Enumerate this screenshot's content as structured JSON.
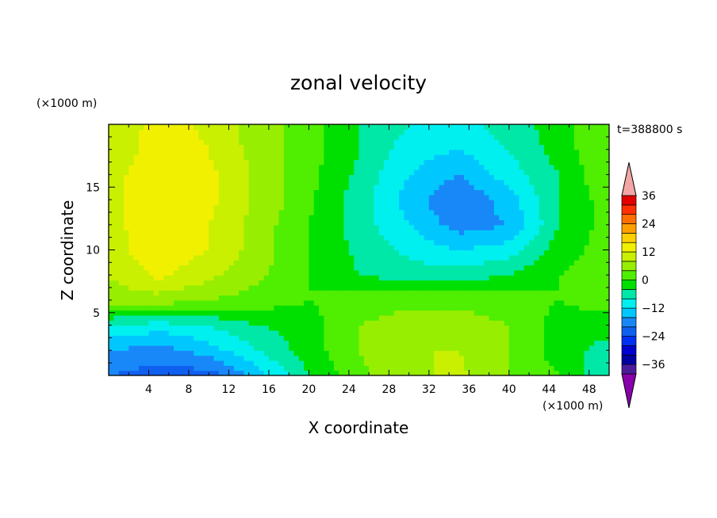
{
  "chart_data": {
    "type": "heatmap",
    "title": "zonal velocity",
    "xlabel": "X coordinate",
    "ylabel": "Z coordinate",
    "x_units": "(×1000 m)",
    "z_units": "(×1000 m)",
    "time_label": "t=388800 s",
    "xlim": [
      0,
      50
    ],
    "ylim": [
      0,
      20
    ],
    "x_ticks": [
      4,
      8,
      12,
      16,
      20,
      24,
      28,
      32,
      36,
      40,
      44,
      48
    ],
    "y_ticks": [
      5,
      10,
      15
    ],
    "colorbar": {
      "levels": [
        -40,
        -36,
        -32,
        -28,
        -24,
        -20,
        -16,
        -12,
        -8,
        -4,
        0,
        4,
        8,
        12,
        16,
        20,
        24,
        28,
        32,
        36,
        40
      ],
      "labels": [
        36,
        24,
        12,
        0,
        -12,
        -24,
        -36
      ],
      "colors": [
        "#8800aa",
        "#4a1c9c",
        "#0000a0",
        "#0000d0",
        "#0030f0",
        "#1060f0",
        "#1888f8",
        "#00c8ff",
        "#00f0f0",
        "#00e8a8",
        "#00e000",
        "#50ee00",
        "#98ee00",
        "#c8f000",
        "#f0f000",
        "#ffd000",
        "#ffa000",
        "#ff7000",
        "#ff3000",
        "#e00000",
        "#f4a6a6"
      ]
    },
    "field": {
      "x": [
        0,
        5,
        10,
        15,
        20,
        25,
        30,
        35,
        40,
        45,
        50
      ],
      "z": [
        0,
        2,
        4,
        6,
        8,
        10,
        12,
        14,
        16,
        18,
        20
      ],
      "values": [
        [
          -20,
          -22,
          -22,
          -14,
          -4,
          3,
          7,
          9,
          4,
          0,
          -8
        ],
        [
          -16,
          -18,
          -14,
          -8,
          -2,
          4,
          8,
          8,
          4,
          -2,
          -6
        ],
        [
          -8,
          -10,
          -8,
          -4,
          -2,
          4,
          6,
          6,
          4,
          -2,
          -2
        ],
        [
          6,
          6,
          4,
          2,
          0,
          2,
          3,
          3,
          2,
          0,
          2
        ],
        [
          8,
          13,
          9,
          5,
          0,
          -4,
          -6,
          -6,
          -4,
          0,
          2
        ],
        [
          10,
          15,
          12,
          6,
          0,
          -5,
          -9,
          -12,
          -10,
          -2,
          2
        ],
        [
          10,
          16,
          12,
          6,
          0,
          -6,
          -12,
          -18,
          -16,
          -4,
          2
        ],
        [
          10,
          16,
          13,
          7,
          1,
          -6,
          -14,
          -20,
          -14,
          -4,
          2
        ],
        [
          10,
          16,
          13,
          7,
          1,
          -5,
          -12,
          -16,
          -10,
          -4,
          4
        ],
        [
          8,
          15,
          12,
          6,
          2,
          -4,
          -10,
          -12,
          -8,
          -2,
          4
        ],
        [
          8,
          14,
          11,
          6,
          2,
          -4,
          -8,
          -10,
          -6,
          -2,
          4
        ]
      ]
    }
  }
}
